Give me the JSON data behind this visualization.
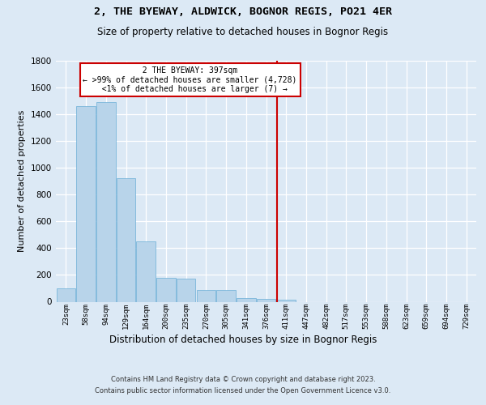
{
  "title": "2, THE BYEWAY, ALDWICK, BOGNOR REGIS, PO21 4ER",
  "subtitle": "Size of property relative to detached houses in Bognor Regis",
  "xlabel": "Distribution of detached houses by size in Bognor Regis",
  "ylabel": "Number of detached properties",
  "footer_line1": "Contains HM Land Registry data © Crown copyright and database right 2023.",
  "footer_line2": "Contains public sector information licensed under the Open Government Licence v3.0.",
  "bar_labels": [
    "23sqm",
    "58sqm",
    "94sqm",
    "129sqm",
    "164sqm",
    "200sqm",
    "235sqm",
    "270sqm",
    "305sqm",
    "341sqm",
    "376sqm",
    "411sqm",
    "447sqm",
    "482sqm",
    "517sqm",
    "553sqm",
    "588sqm",
    "623sqm",
    "659sqm",
    "694sqm",
    "729sqm"
  ],
  "bar_values": [
    100,
    1460,
    1490,
    920,
    450,
    180,
    175,
    85,
    90,
    30,
    20,
    15,
    0,
    0,
    0,
    0,
    0,
    0,
    0,
    0,
    0
  ],
  "bar_color": "#b8d4ea",
  "bar_edgecolor": "#6aaed6",
  "marker_index": 10.55,
  "marker_label": "2 THE BYEWAY: 397sqm",
  "marker_smaller": ">99% of detached houses are smaller (4,728)",
  "marker_larger": "<1% of detached houses are larger (7)",
  "marker_color": "#cc0000",
  "ylim_max": 1800,
  "ytick_step": 200,
  "bg_color": "#dce9f5",
  "grid_color": "#ffffff"
}
